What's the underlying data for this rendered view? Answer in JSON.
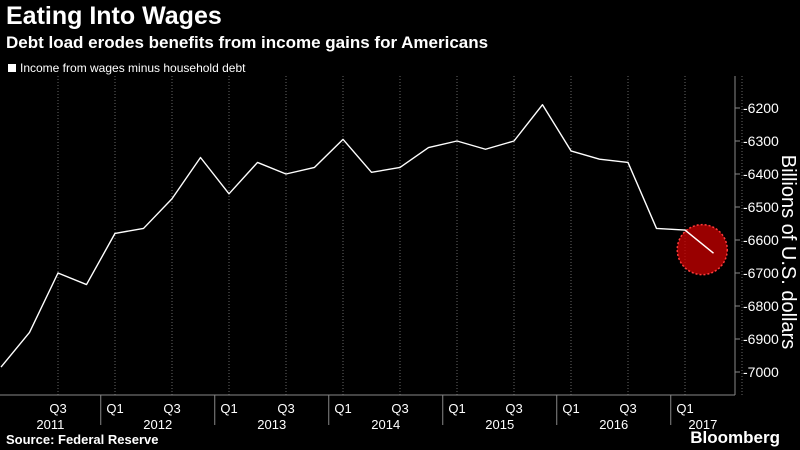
{
  "header": {
    "title": "Eating Into Wages",
    "subtitle": "Debt load erodes benefits from income gains for Americans"
  },
  "footer": {
    "source": "Source: Federal Reserve",
    "brand": "Bloomberg"
  },
  "colors": {
    "background": "#000000",
    "line": "#ffffff",
    "highlight": "#cc0000"
  },
  "chart_data": {
    "type": "line",
    "title": "",
    "legend": "Income from wages minus household debt",
    "ylabel": "Billions of U.S. dollars",
    "y_axis_position": "right",
    "y_inverted": true,
    "ylim": [
      -7050,
      -6150
    ],
    "yticks": [
      -6200,
      -6300,
      -6400,
      -6500,
      -6600,
      -6700,
      -6800,
      -6900,
      -7000
    ],
    "grid": "vertical dotted",
    "x_quarter_labels": [
      "Q3",
      "Q1",
      "Q3",
      "Q1",
      "Q3",
      "Q1",
      "Q3",
      "Q1",
      "Q3",
      "Q1",
      "Q3",
      "Q1"
    ],
    "x_year_labels": [
      "2011",
      "2012",
      "2013",
      "2014",
      "2015",
      "2016",
      "2017"
    ],
    "series": [
      {
        "x": [
          "2011-Q1",
          "2011-Q2",
          "2011-Q3",
          "2011-Q4",
          "2012-Q1",
          "2012-Q2",
          "2012-Q3",
          "2012-Q4",
          "2013-Q1",
          "2013-Q2",
          "2013-Q3",
          "2013-Q4",
          "2014-Q1",
          "2014-Q2",
          "2014-Q3",
          "2014-Q4",
          "2015-Q1",
          "2015-Q2",
          "2015-Q3",
          "2015-Q4",
          "2016-Q1",
          "2016-Q2",
          "2016-Q3",
          "2016-Q4",
          "2017-Q1",
          "2017-Q2"
        ],
        "values": [
          -6985,
          -6880,
          -6700,
          -6735,
          -6580,
          -6565,
          -6475,
          -6350,
          -6460,
          -6365,
          -6400,
          -6380,
          -6295,
          -6395,
          -6380,
          -6320,
          -6300,
          -6325,
          -6300,
          -6190,
          -6330,
          -6355,
          -6365,
          -6565,
          -6570,
          -6640
        ]
      }
    ],
    "highlight_point": "2017-Q2"
  }
}
